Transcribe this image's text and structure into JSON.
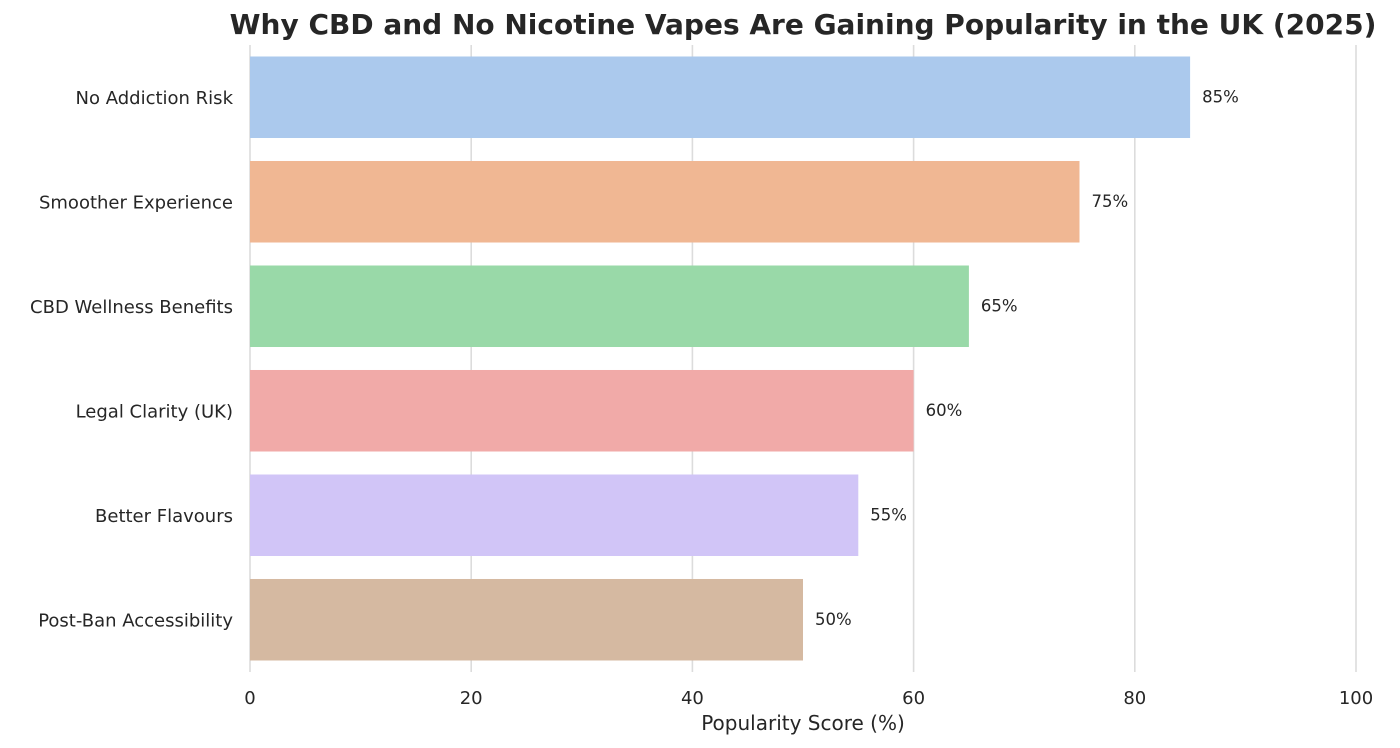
{
  "chart_data": {
    "type": "bar",
    "orientation": "horizontal",
    "title": "Why CBD and No Nicotine Vapes Are Gaining Popularity in the UK (2025)",
    "xlabel": "Popularity Score (%)",
    "ylabel": "",
    "xlim": [
      0,
      100
    ],
    "x_ticks": [
      "0",
      "20",
      "40",
      "60",
      "80",
      "100"
    ],
    "grid": "vertical",
    "categories": [
      "No Addiction Risk",
      "Smoother Experience",
      "CBD Wellness Benefits",
      "Legal Clarity (UK)",
      "Better Flavours",
      "Post-Ban Accessibility"
    ],
    "values": [
      85,
      75,
      65,
      60,
      55,
      50
    ],
    "value_labels": [
      "85%",
      "75%",
      "65%",
      "60%",
      "55%",
      "50%"
    ],
    "colors": [
      "#abc9ed",
      "#f0b793",
      "#99d9a8",
      "#f1aaa8",
      "#d1c5f7",
      "#d5b9a1"
    ]
  }
}
